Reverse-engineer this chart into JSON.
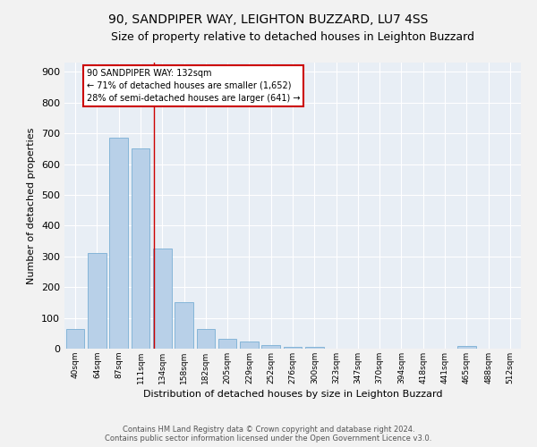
{
  "title": "90, SANDPIPER WAY, LEIGHTON BUZZARD, LU7 4SS",
  "subtitle": "Size of property relative to detached houses in Leighton Buzzard",
  "xlabel": "Distribution of detached houses by size in Leighton Buzzard",
  "ylabel": "Number of detached properties",
  "categories": [
    "40sqm",
    "64sqm",
    "87sqm",
    "111sqm",
    "134sqm",
    "158sqm",
    "182sqm",
    "205sqm",
    "229sqm",
    "252sqm",
    "276sqm",
    "300sqm",
    "323sqm",
    "347sqm",
    "370sqm",
    "394sqm",
    "418sqm",
    "441sqm",
    "465sqm",
    "488sqm",
    "512sqm"
  ],
  "values": [
    65,
    310,
    685,
    650,
    325,
    150,
    65,
    33,
    22,
    12,
    5,
    5,
    0,
    0,
    0,
    0,
    0,
    0,
    8,
    0,
    0
  ],
  "bar_color": "#b8d0e8",
  "bar_edge_color": "#7aafd4",
  "annotation_text_line1": "90 SANDPIPER WAY: 132sqm",
  "annotation_text_line2": "← 71% of detached houses are smaller (1,652)",
  "annotation_text_line3": "28% of semi-detached houses are larger (641) →",
  "annotation_box_color": "#ffffff",
  "annotation_box_edge_color": "#cc0000",
  "property_line_color": "#cc0000",
  "background_color": "#e8eef5",
  "footer_line1": "Contains HM Land Registry data © Crown copyright and database right 2024.",
  "footer_line2": "Contains public sector information licensed under the Open Government Licence v3.0.",
  "ylim": [
    0,
    930
  ],
  "yticks": [
    0,
    100,
    200,
    300,
    400,
    500,
    600,
    700,
    800,
    900
  ],
  "title_fontsize": 10,
  "subtitle_fontsize": 9,
  "grid_color": "#ffffff"
}
